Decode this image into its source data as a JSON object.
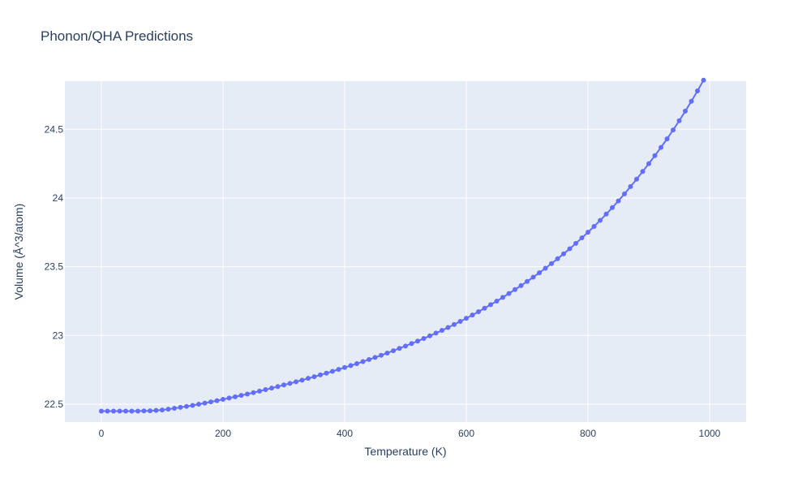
{
  "chart_data": {
    "type": "line",
    "title": "Phonon/QHA Predictions",
    "xlabel": "Temperature (K)",
    "ylabel": "Volume (Å^3/atom)",
    "xlim": [
      -60,
      1060
    ],
    "ylim": [
      22.37,
      24.85
    ],
    "x_ticks": [
      0,
      200,
      400,
      600,
      800,
      1000
    ],
    "x_tick_labels": [
      "0",
      "200",
      "400",
      "600",
      "800",
      "1000"
    ],
    "y_ticks": [
      22.5,
      23,
      23.5,
      24,
      24.5
    ],
    "y_tick_labels": [
      "22.5",
      "23",
      "23.5",
      "24",
      "24.5"
    ],
    "grid": true,
    "legend": "none",
    "colors": {
      "series": "#636efa",
      "plot_bg": "#e5ecf6",
      "grid": "#ffffff",
      "text": "#2a3f5f"
    },
    "series": [
      {
        "x": [
          0,
          10,
          20,
          30,
          40,
          50,
          60,
          70,
          80,
          90,
          100,
          110,
          120,
          130,
          140,
          150,
          160,
          170,
          180,
          190,
          200,
          210,
          220,
          230,
          240,
          250,
          260,
          270,
          280,
          290,
          300,
          310,
          320,
          330,
          340,
          350,
          360,
          370,
          380,
          390,
          400,
          410,
          420,
          430,
          440,
          450,
          460,
          470,
          480,
          490,
          500,
          510,
          520,
          530,
          540,
          550,
          560,
          570,
          580,
          590,
          600,
          610,
          620,
          630,
          640,
          650,
          660,
          670,
          680,
          690,
          700,
          710,
          720,
          730,
          740,
          750,
          760,
          770,
          780,
          790,
          800,
          810,
          820,
          830,
          840,
          850,
          860,
          870,
          880,
          890,
          900,
          910,
          920,
          930,
          940,
          950,
          960,
          970,
          980,
          990
        ],
        "values": [
          22.45,
          22.45,
          22.45,
          22.45,
          22.45,
          22.45,
          22.45,
          22.451,
          22.452,
          22.455,
          22.458,
          22.464,
          22.47,
          22.477,
          22.484,
          22.491,
          22.5,
          22.508,
          22.517,
          22.526,
          22.535,
          22.545,
          22.554,
          22.564,
          22.574,
          22.584,
          22.595,
          22.606,
          22.617,
          22.628,
          22.64,
          22.651,
          22.663,
          22.675,
          22.688,
          22.7,
          22.713,
          22.726,
          22.739,
          22.753,
          22.767,
          22.781,
          22.795,
          22.81,
          22.825,
          22.84,
          22.856,
          22.872,
          22.889,
          22.906,
          22.923,
          22.941,
          22.959,
          22.978,
          22.997,
          23.017,
          23.037,
          23.058,
          23.08,
          23.102,
          23.125,
          23.149,
          23.173,
          23.198,
          23.224,
          23.25,
          23.277,
          23.305,
          23.334,
          23.363,
          23.393,
          23.424,
          23.456,
          23.489,
          23.523,
          23.558,
          23.594,
          23.631,
          23.67,
          23.71,
          23.751,
          23.793,
          23.837,
          23.883,
          23.93,
          23.979,
          24.03,
          24.083,
          24.137,
          24.193,
          24.25,
          24.308,
          24.368,
          24.43,
          24.495,
          24.562,
          24.632,
          24.704,
          24.779,
          24.857
        ]
      }
    ]
  }
}
